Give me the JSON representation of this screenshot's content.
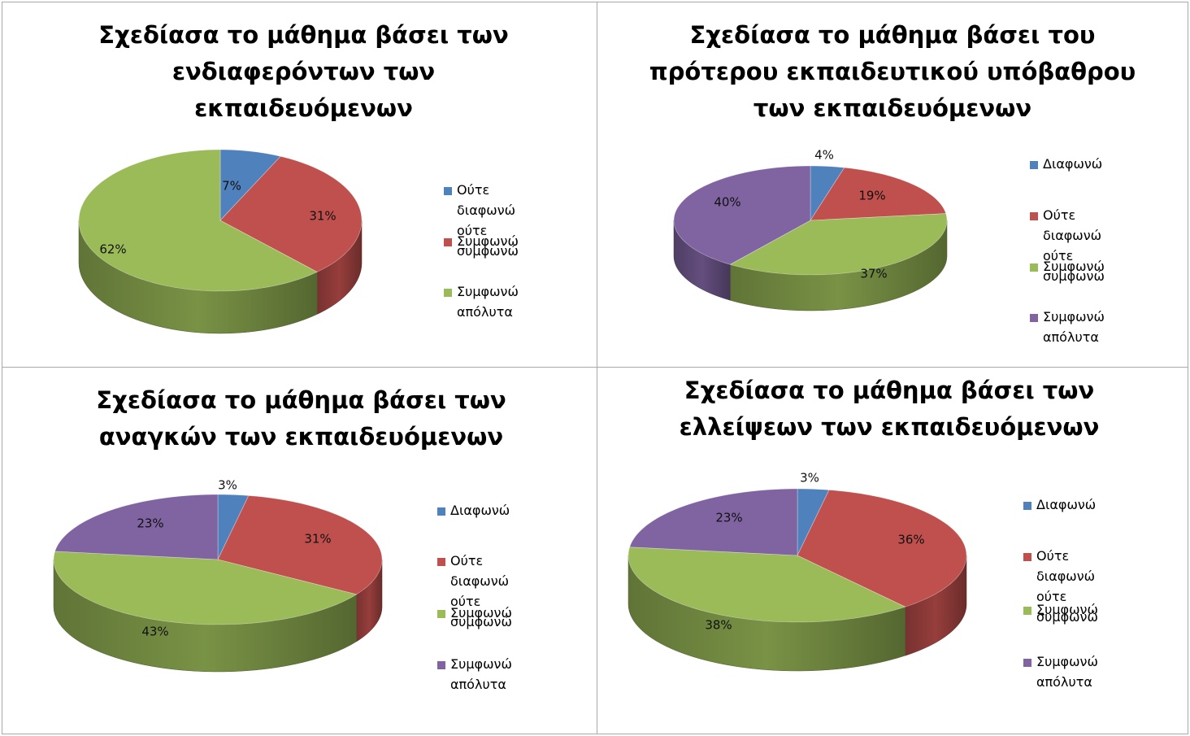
{
  "colors": {
    "blue": "#4f81bd",
    "red": "#c0504d",
    "green": "#9bbb59",
    "purple": "#8064a2"
  },
  "chart_data": [
    {
      "type": "pie",
      "title": "Σχεδίασα το μάθημα βάσει των\nενδιαφερόντων των\nεκπαιδευόμενων",
      "legend_position": "right",
      "slices": [
        {
          "label": "Ούτε διαφωνώ\nούτε συμφωνώ",
          "value": 7,
          "display": "7%",
          "color": "blue"
        },
        {
          "label": "Συμφωνώ",
          "value": 31,
          "display": "31%",
          "color": "red"
        },
        {
          "label": "Συμφωνώ  απόλυτα",
          "value": 62,
          "display": "62%",
          "color": "green"
        }
      ]
    },
    {
      "type": "pie",
      "title": "Σχεδίασα το μάθημα βάσει του\nπρότερου εκπαιδευτικού υπόβαθρου\nτων εκπαιδευόμενων",
      "legend_position": "right",
      "slices": [
        {
          "label": "Διαφωνώ",
          "value": 4,
          "display": "4%",
          "color": "blue"
        },
        {
          "label": "Ούτε διαφωνώ\nούτε συμφωνώ",
          "value": 19,
          "display": "19%",
          "color": "red"
        },
        {
          "label": "Συμφωνώ",
          "value": 37,
          "display": "37%",
          "color": "green"
        },
        {
          "label": "Συμφωνώ  απόλυτα",
          "value": 40,
          "display": "40%",
          "color": "purple"
        }
      ]
    },
    {
      "type": "pie",
      "title": "Σχεδίασα το μάθημα βάσει των\nαναγκών των εκπαιδευόμενων",
      "legend_position": "right",
      "slices": [
        {
          "label": "Διαφωνώ",
          "value": 3,
          "display": "3%",
          "color": "blue"
        },
        {
          "label": "Ούτε διαφωνώ\nούτε συμφωνώ",
          "value": 31,
          "display": "31%",
          "color": "red"
        },
        {
          "label": "Συμφωνώ",
          "value": 43,
          "display": "43%",
          "color": "green"
        },
        {
          "label": "Συμφωνώ  απόλυτα",
          "value": 23,
          "display": "23%",
          "color": "purple"
        }
      ]
    },
    {
      "type": "pie",
      "title": "Σχεδίασα το μάθημα βάσει των\nελλείψεων των εκπαιδευόμενων",
      "legend_position": "right",
      "slices": [
        {
          "label": "Διαφωνώ",
          "value": 3,
          "display": "3%",
          "color": "blue"
        },
        {
          "label": "Ούτε διαφωνώ\nούτε συμφωνώ",
          "value": 36,
          "display": "36%",
          "color": "red"
        },
        {
          "label": "Συμφωνώ",
          "value": 38,
          "display": "38%",
          "color": "green"
        },
        {
          "label": "Συμφωνώ  απόλυτα",
          "value": 23,
          "display": "23%",
          "color": "purple"
        }
      ]
    }
  ]
}
